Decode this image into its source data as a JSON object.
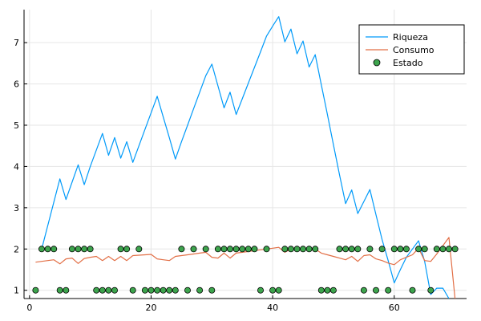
{
  "chart_data": {
    "type": "line",
    "title": "",
    "xlabel": "",
    "ylabel": "",
    "xlim": [
      -0.9,
      71.9
    ],
    "ylim": [
      0.8,
      7.8
    ],
    "xticks": [
      0,
      20,
      40,
      60
    ],
    "xtick_labels": [
      "0",
      "20",
      "40",
      "60"
    ],
    "yticks": [
      1,
      2,
      3,
      4,
      5,
      6,
      7
    ],
    "ytick_labels": [
      "1",
      "2",
      "3",
      "4",
      "5",
      "6",
      "7"
    ],
    "grid": true,
    "legend": "top-right",
    "series": [
      {
        "name": "Riqueza",
        "kind": "line",
        "color": "#009AF9",
        "x": [
          1,
          2,
          3,
          4,
          5,
          6,
          7,
          8,
          9,
          10,
          11,
          12,
          13,
          14,
          15,
          16,
          17,
          18,
          19,
          20,
          21,
          22,
          23,
          24,
          25,
          26,
          27,
          28,
          29,
          30,
          31,
          32,
          33,
          34,
          35,
          36,
          37,
          38,
          39,
          40,
          41,
          42,
          43,
          44,
          45,
          46,
          47,
          48,
          49,
          50,
          51,
          52,
          53,
          54,
          55,
          56,
          57,
          58,
          59,
          60,
          61,
          62,
          63,
          64,
          65,
          66,
          67,
          68,
          69,
          70
        ],
        "values": [
          null,
          2.0,
          2.57,
          3.14,
          3.7,
          3.2,
          3.62,
          4.04,
          3.56,
          4.0,
          4.4,
          4.8,
          4.27,
          4.7,
          4.2,
          4.6,
          4.1,
          4.5,
          4.9,
          5.3,
          5.7,
          5.2,
          4.7,
          4.18,
          4.6,
          5.0,
          5.4,
          5.8,
          6.2,
          6.48,
          5.95,
          5.42,
          5.8,
          5.26,
          5.64,
          6.02,
          6.4,
          6.78,
          7.16,
          7.4,
          7.63,
          7.02,
          7.33,
          6.73,
          7.04,
          6.41,
          6.71,
          5.98,
          5.26,
          4.53,
          3.8,
          3.1,
          3.43,
          2.86,
          3.15,
          3.44,
          2.83,
          2.23,
          1.72,
          1.18,
          1.5,
          1.8,
          2.0,
          2.2,
          1.7,
          0.9,
          1.05,
          1.05,
          0.8,
          null
        ]
      },
      {
        "name": "Consumo",
        "kind": "line",
        "color": "#E26F46",
        "x": [
          1,
          2,
          3,
          4,
          5,
          6,
          7,
          8,
          9,
          10,
          11,
          12,
          13,
          14,
          15,
          16,
          17,
          18,
          19,
          20,
          21,
          22,
          23,
          24,
          25,
          26,
          27,
          28,
          29,
          30,
          31,
          32,
          33,
          34,
          35,
          36,
          37,
          38,
          39,
          40,
          41,
          42,
          43,
          44,
          45,
          46,
          47,
          48,
          49,
          50,
          51,
          52,
          53,
          54,
          55,
          56,
          57,
          58,
          59,
          60,
          61,
          62,
          63,
          64,
          65,
          66,
          67,
          68,
          69,
          70
        ],
        "values": [
          1.68,
          1.7,
          1.72,
          1.74,
          1.64,
          1.76,
          1.78,
          1.65,
          1.77,
          1.8,
          1.82,
          1.72,
          1.82,
          1.72,
          1.82,
          1.72,
          1.84,
          1.85,
          1.86,
          1.87,
          1.76,
          1.74,
          1.72,
          1.82,
          1.84,
          1.86,
          1.88,
          1.9,
          1.92,
          1.8,
          1.78,
          1.9,
          1.78,
          1.9,
          1.92,
          1.94,
          1.96,
          1.98,
          2.0,
          2.02,
          2.04,
          1.92,
          2.0,
          2.0,
          2.0,
          2.0,
          2.0,
          1.9,
          1.86,
          1.82,
          1.78,
          1.74,
          1.82,
          1.7,
          1.84,
          1.86,
          1.76,
          1.72,
          1.66,
          1.62,
          1.74,
          1.8,
          1.86,
          2.02,
          1.72,
          1.7,
          1.88,
          2.08,
          2.28,
          0.8
        ]
      },
      {
        "name": "Estado",
        "kind": "scatter",
        "color": "#3DA44D",
        "x": [
          1,
          2,
          3,
          4,
          5,
          6,
          7,
          8,
          9,
          10,
          11,
          12,
          13,
          14,
          15,
          16,
          17,
          18,
          19,
          20,
          21,
          22,
          23,
          24,
          25,
          26,
          27,
          28,
          29,
          30,
          31,
          32,
          33,
          34,
          35,
          36,
          37,
          38,
          39,
          40,
          41,
          42,
          43,
          44,
          45,
          46,
          47,
          48,
          49,
          50,
          51,
          52,
          53,
          54,
          55,
          56,
          57,
          58,
          59,
          60,
          61,
          62,
          63,
          64,
          65,
          66,
          67,
          68,
          69,
          70
        ],
        "values": [
          1,
          2,
          2,
          2,
          1,
          1,
          2,
          2,
          2,
          2,
          1,
          1,
          1,
          1,
          2,
          2,
          1,
          2,
          1,
          1,
          1,
          1,
          1,
          1,
          2,
          1,
          2,
          1,
          2,
          1,
          2,
          2,
          2,
          2,
          2,
          2,
          2,
          1,
          2,
          1,
          1,
          2,
          2,
          2,
          2,
          2,
          2,
          1,
          1,
          1,
          2,
          2,
          2,
          2,
          1,
          2,
          1,
          2,
          1,
          2,
          2,
          2,
          1,
          2,
          2,
          1,
          2,
          2,
          2,
          2
        ]
      }
    ]
  }
}
